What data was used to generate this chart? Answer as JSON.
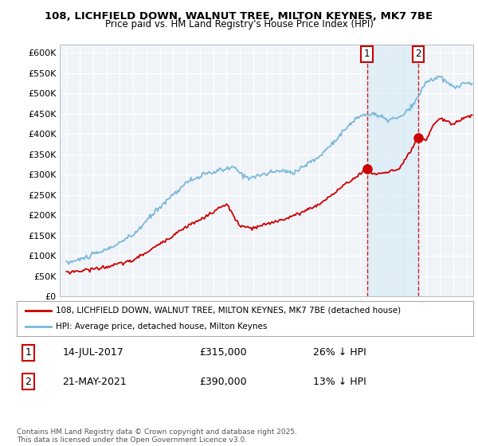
{
  "title_line1": "108, LICHFIELD DOWN, WALNUT TREE, MILTON KEYNES, MK7 7BE",
  "title_line2": "Price paid vs. HM Land Registry's House Price Index (HPI)",
  "ylabel_ticks": [
    "£0",
    "£50K",
    "£100K",
    "£150K",
    "£200K",
    "£250K",
    "£300K",
    "£350K",
    "£400K",
    "£450K",
    "£500K",
    "£550K",
    "£600K"
  ],
  "ytick_values": [
    0,
    50000,
    100000,
    150000,
    200000,
    250000,
    300000,
    350000,
    400000,
    450000,
    500000,
    550000,
    600000
  ],
  "hpi_color": "#7ab8d9",
  "price_color": "#cc0000",
  "marker1_date_x": 2017.54,
  "marker2_date_x": 2021.38,
  "marker1_price": 315000,
  "marker2_price": 390000,
  "transaction1": {
    "date": "14-JUL-2017",
    "price": 315000,
    "hpi_diff": "26% ↓ HPI"
  },
  "transaction2": {
    "date": "21-MAY-2021",
    "price": 390000,
    "hpi_diff": "13% ↓ HPI"
  },
  "legend_label_price": "108, LICHFIELD DOWN, WALNUT TREE, MILTON KEYNES, MK7 7BE (detached house)",
  "legend_label_hpi": "HPI: Average price, detached house, Milton Keynes",
  "footer": "Contains HM Land Registry data © Crown copyright and database right 2025.\nThis data is licensed under the Open Government Licence v3.0.",
  "xlim": [
    1994.5,
    2025.5
  ],
  "ylim": [
    0,
    620000
  ],
  "xticks": [
    1995,
    1996,
    1997,
    1998,
    1999,
    2000,
    2001,
    2002,
    2003,
    2004,
    2005,
    2006,
    2007,
    2008,
    2009,
    2010,
    2011,
    2012,
    2013,
    2014,
    2015,
    2016,
    2017,
    2018,
    2019,
    2020,
    2021,
    2022,
    2023,
    2024,
    2025
  ],
  "bg_color": "#f0f4f8"
}
